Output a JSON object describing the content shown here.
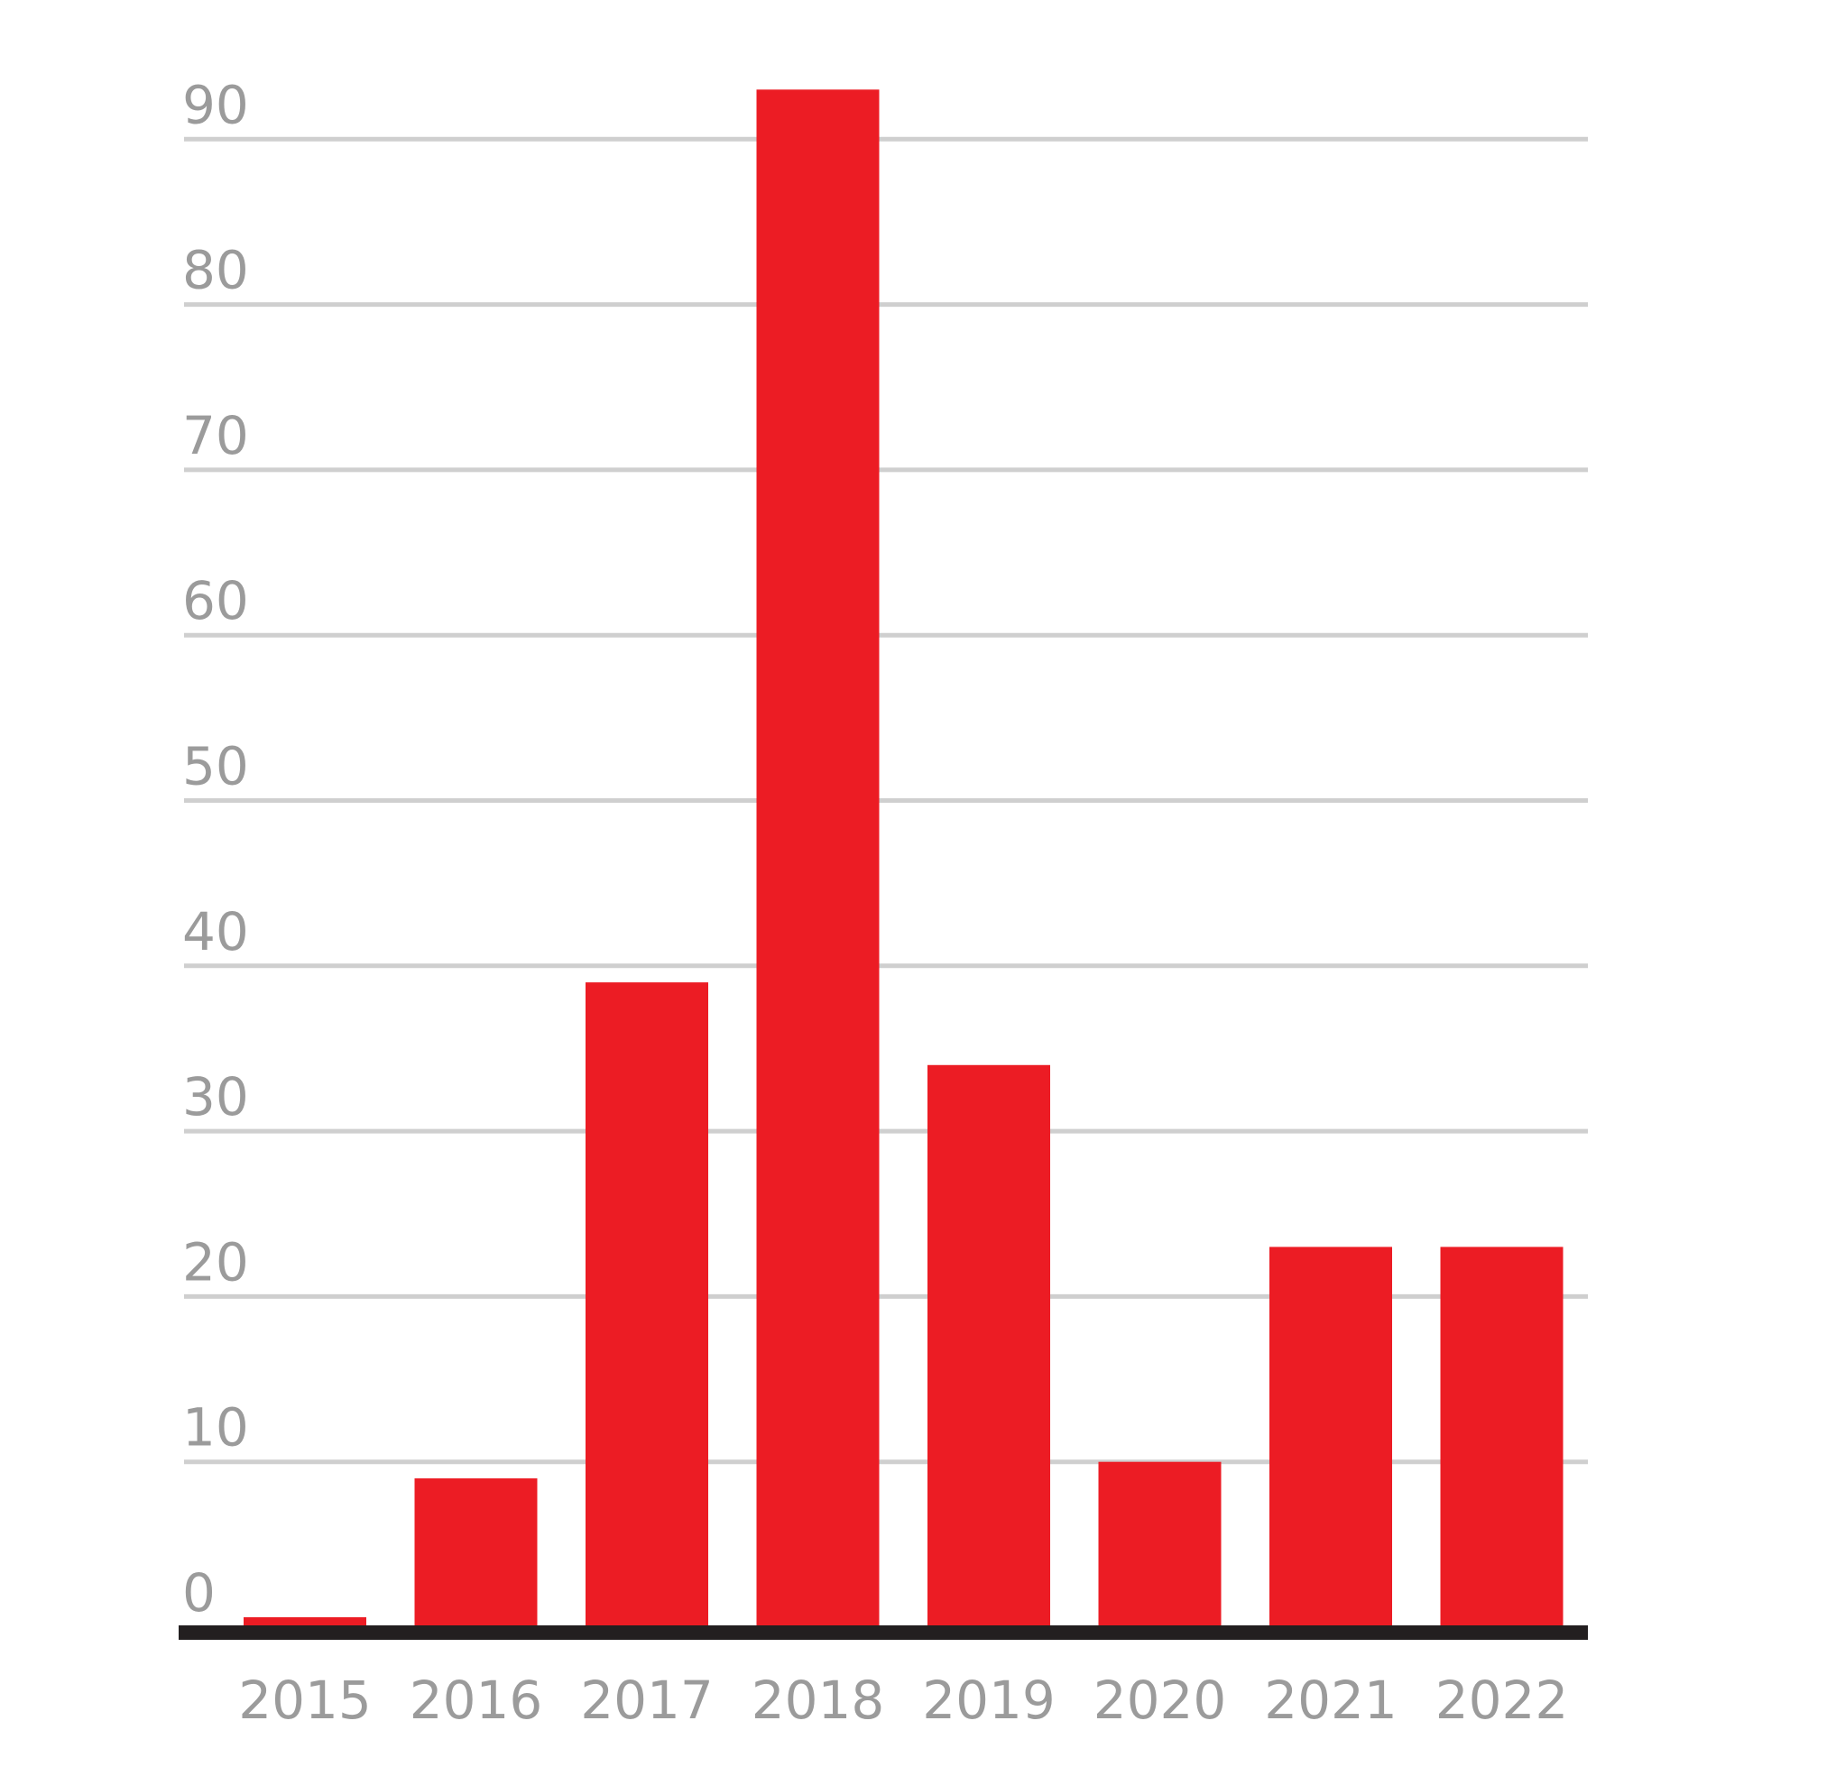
{
  "chart_data": {
    "type": "bar",
    "categories": [
      "2015",
      "2016",
      "2017",
      "2018",
      "2019",
      "2020",
      "2021",
      "2022"
    ],
    "values": [
      0.6,
      9,
      39,
      93,
      34,
      10,
      23,
      23
    ],
    "yticks": [
      "0",
      "10",
      "20",
      "30",
      "40",
      "50",
      "60",
      "70",
      "80",
      "90"
    ],
    "ylim": [
      0,
      90
    ],
    "grid": true,
    "title": "",
    "xlabel": "",
    "ylabel": "",
    "colors": {
      "bar": "#ec1c24",
      "grid": "#cfcfcf",
      "axis": "#231f20",
      "label": "#9b9b9b"
    }
  }
}
